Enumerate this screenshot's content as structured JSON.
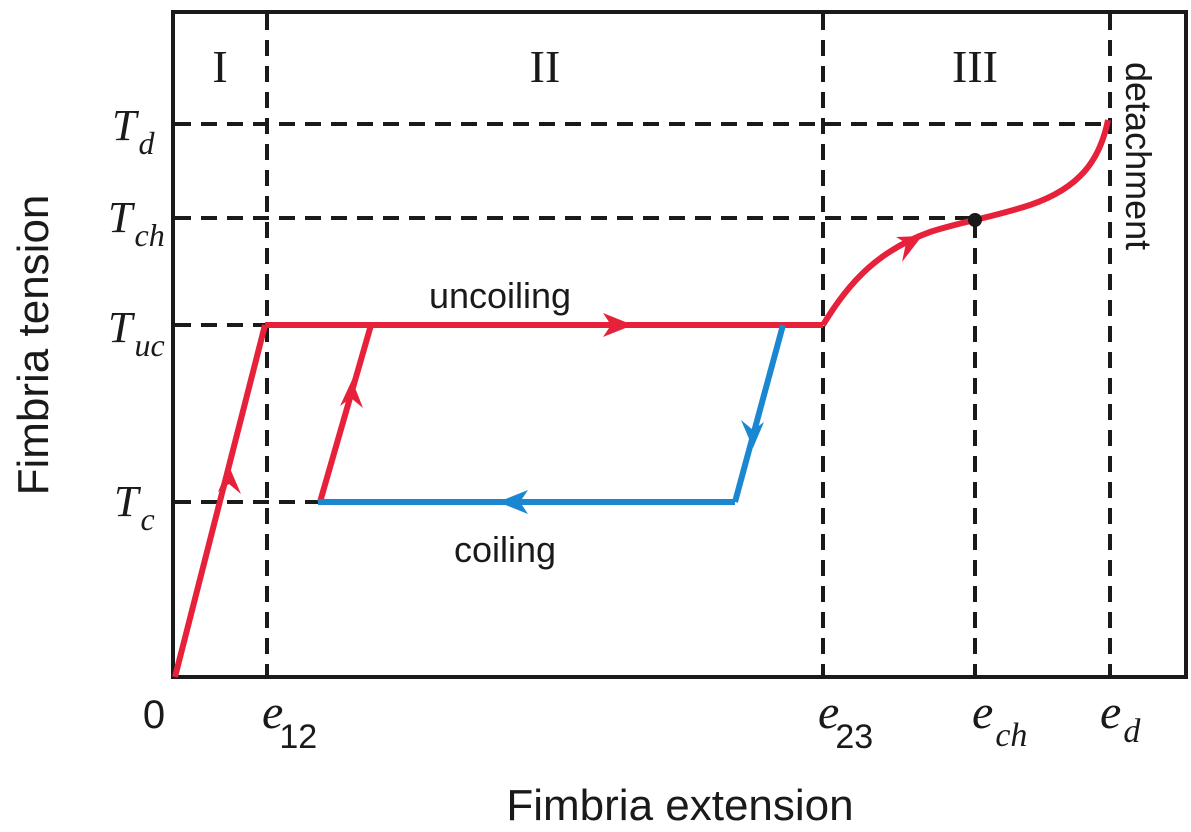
{
  "axes": {
    "xlabel": "Fimbria extension",
    "ylabel": "Fimbria tension",
    "origin": "0"
  },
  "regions": [
    "I",
    "II",
    "III"
  ],
  "y_ticks": [
    {
      "main": "T",
      "sub": "d"
    },
    {
      "main": "T",
      "sub": "ch"
    },
    {
      "main": "T",
      "sub": "uc"
    },
    {
      "main": "T",
      "sub": "c"
    }
  ],
  "x_ticks": [
    {
      "main": "e",
      "sub": "12"
    },
    {
      "main": "e",
      "sub": "23"
    },
    {
      "main": "e",
      "sub": "ch"
    },
    {
      "main": "e",
      "sub": "d"
    }
  ],
  "annotations": {
    "uncoiling": "uncoiling",
    "coiling": "coiling",
    "detachment": "detachment"
  },
  "colors": {
    "uncoiling": "#e8213a",
    "coiling": "#1b87d1",
    "axis": "#1a1a1a",
    "guide": "#1a1a1a"
  }
}
